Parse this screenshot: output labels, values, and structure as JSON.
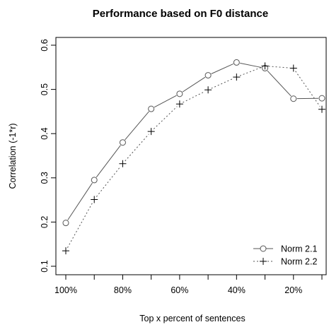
{
  "chart_data": {
    "type": "line",
    "title": "Performance based on F0 distance",
    "xlabel": "Top x percent of sentences",
    "ylabel": "Correlation (-1*r)",
    "x": [
      100,
      90,
      80,
      70,
      60,
      50,
      40,
      30,
      20,
      10
    ],
    "x_ticks": [
      100,
      80,
      60,
      40,
      20
    ],
    "x_tick_labels": [
      "100%",
      "80%",
      "60%",
      "40%",
      "20%"
    ],
    "xlim": [
      100,
      10
    ],
    "ylim": [
      0.1,
      0.6
    ],
    "y_ticks": [
      0.1,
      0.2,
      0.3,
      0.4,
      0.5,
      0.6
    ],
    "y_tick_labels": [
      "0.1",
      "0.2",
      "0.3",
      "0.4",
      "0.5",
      "0.6"
    ],
    "grid": false,
    "legend_position": "bottom-right",
    "series": [
      {
        "name": "Norm 2.1",
        "line_style": "solid",
        "marker": "circle",
        "color": "#555555",
        "values": [
          0.198,
          0.295,
          0.38,
          0.456,
          0.49,
          0.532,
          0.561,
          0.548,
          0.479,
          0.48
        ]
      },
      {
        "name": "Norm 2.2",
        "line_style": "dotted",
        "marker": "plus",
        "color": "#555555",
        "values": [
          0.135,
          0.251,
          0.332,
          0.405,
          0.467,
          0.499,
          0.528,
          0.553,
          0.548,
          0.455
        ]
      }
    ]
  }
}
